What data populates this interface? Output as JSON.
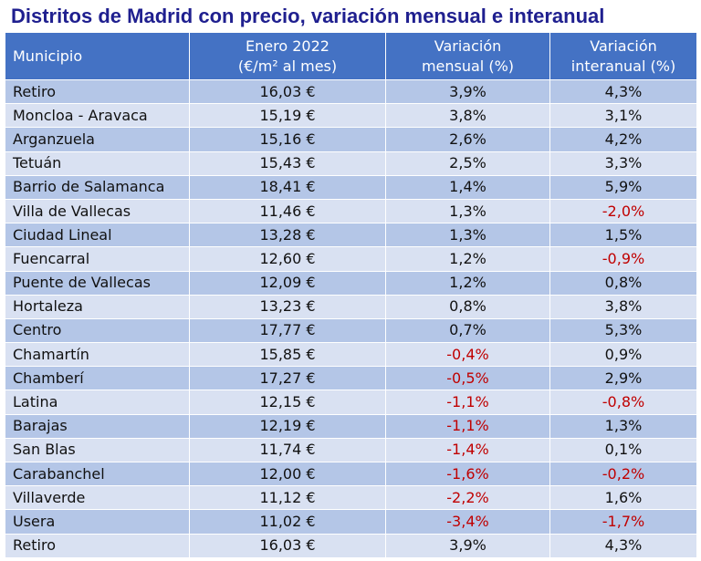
{
  "title": "Distritos de Madrid con precio, variación mensual e interanual",
  "columns": {
    "municipio": "Municipio",
    "precio_line1": "Enero 2022",
    "precio_line2": "(€/m² al mes)",
    "mensual_line1": "Variación",
    "mensual_line2": "mensual (%)",
    "interanual_line1": "Variación",
    "interanual_line2": "interanual (%)"
  },
  "rows": [
    {
      "name": "Retiro",
      "price": "16,03 €",
      "monthly": "3,9%",
      "yearly": "4,3%"
    },
    {
      "name": "Moncloa - Aravaca",
      "price": "15,19 €",
      "monthly": "3,8%",
      "yearly": "3,1%"
    },
    {
      "name": "Arganzuela",
      "price": "15,16 €",
      "monthly": "2,6%",
      "yearly": "4,2%"
    },
    {
      "name": "Tetuán",
      "price": "15,43 €",
      "monthly": "2,5%",
      "yearly": "3,3%"
    },
    {
      "name": "Barrio de Salamanca",
      "price": "18,41 €",
      "monthly": "1,4%",
      "yearly": "5,9%"
    },
    {
      "name": "Villa de Vallecas",
      "price": "11,46 €",
      "monthly": "1,3%",
      "yearly": "-2,0%"
    },
    {
      "name": "Ciudad Lineal",
      "price": "13,28 €",
      "monthly": "1,3%",
      "yearly": "1,5%"
    },
    {
      "name": "Fuencarral",
      "price": "12,60 €",
      "monthly": "1,2%",
      "yearly": "-0,9%"
    },
    {
      "name": "Puente de Vallecas",
      "price": "12,09 €",
      "monthly": "1,2%",
      "yearly": "0,8%"
    },
    {
      "name": "Hortaleza",
      "price": "13,23 €",
      "monthly": "0,8%",
      "yearly": "3,8%"
    },
    {
      "name": "Centro",
      "price": "17,77 €",
      "monthly": "0,7%",
      "yearly": "5,3%"
    },
    {
      "name": "Chamartín",
      "price": "15,85 €",
      "monthly": "-0,4%",
      "yearly": "0,9%"
    },
    {
      "name": "Chamberí",
      "price": "17,27 €",
      "monthly": "-0,5%",
      "yearly": "2,9%"
    },
    {
      "name": "Latina",
      "price": "12,15 €",
      "monthly": "-1,1%",
      "yearly": "-0,8%"
    },
    {
      "name": "Barajas",
      "price": "12,19 €",
      "monthly": "-1,1%",
      "yearly": "1,3%"
    },
    {
      "name": "San Blas",
      "price": "11,74 €",
      "monthly": "-1,4%",
      "yearly": "0,1%"
    },
    {
      "name": "Carabanchel",
      "price": "12,00 €",
      "monthly": "-1,6%",
      "yearly": "-0,2%"
    },
    {
      "name": "Villaverde",
      "price": "11,12 €",
      "monthly": "-2,2%",
      "yearly": "1,6%"
    },
    {
      "name": "Usera",
      "price": "11,02 €",
      "monthly": "-3,4%",
      "yearly": "-1,7%"
    },
    {
      "name": "Retiro",
      "price": "16,03 €",
      "monthly": "3,9%",
      "yearly": "4,3%"
    }
  ],
  "colors": {
    "header": "#4472c4",
    "row_odd": "#b4c6e7",
    "row_even": "#d9e1f2",
    "negative": "#c00000",
    "title": "#1f1f8f"
  }
}
